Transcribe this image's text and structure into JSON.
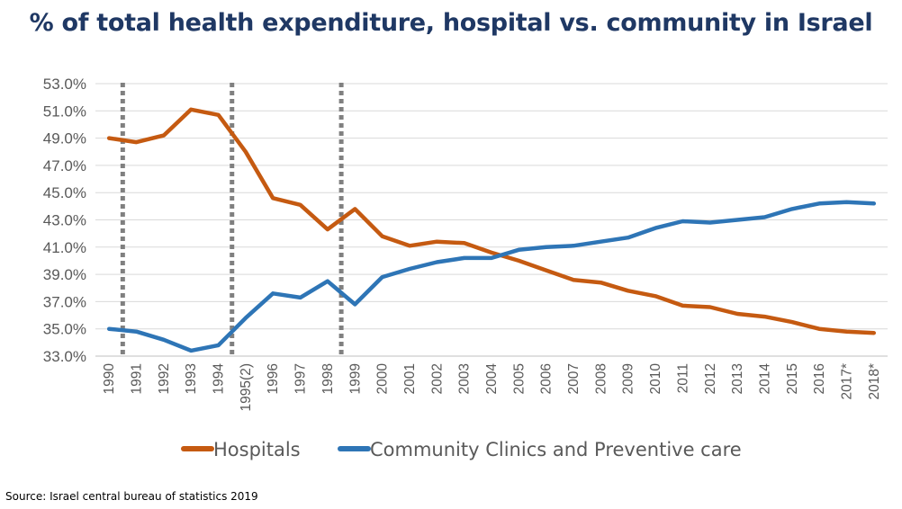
{
  "title": "% of total health expenditure, hospital vs. community in Israel",
  "source": "Source: Israel central bureau of statistics 2019",
  "chart_data": {
    "type": "line",
    "title": "% of total health expenditure, hospital vs. community in Israel",
    "xlabel": "",
    "ylabel": "",
    "categories": [
      "1990",
      "1991",
      "1992",
      "1993",
      "1994",
      "1995(2)",
      "1996",
      "1997",
      "1998",
      "1999",
      "2000",
      "2001",
      "2002",
      "2003",
      "2004",
      "2005",
      "2006",
      "2007",
      "2008",
      "2009",
      "2010",
      "2011",
      "2012",
      "2013",
      "2014",
      "2015",
      "2016",
      "2017*",
      "2018*"
    ],
    "ylim": [
      33.0,
      53.0
    ],
    "yticks": [
      "33.0%",
      "35.0%",
      "37.0%",
      "39.0%",
      "41.0%",
      "43.0%",
      "45.0%",
      "47.0%",
      "49.0%",
      "51.0%",
      "53.0%"
    ],
    "grid": true,
    "legend_position": "bottom",
    "series": [
      {
        "name": "Hospitals",
        "color": "#c55a11",
        "values": [
          49.0,
          48.7,
          49.2,
          51.1,
          50.7,
          48.0,
          44.6,
          44.1,
          42.3,
          43.8,
          41.8,
          41.1,
          41.4,
          41.3,
          40.6,
          40.0,
          39.3,
          38.6,
          38.4,
          37.8,
          37.4,
          36.7,
          36.6,
          36.1,
          35.9,
          35.5,
          35.0,
          34.8,
          34.7
        ]
      },
      {
        "name": "Community Clinics and Preventive care",
        "color": "#2e75b6",
        "values": [
          35.0,
          34.8,
          34.2,
          33.4,
          33.8,
          35.8,
          37.6,
          37.3,
          38.5,
          36.8,
          38.8,
          39.4,
          39.9,
          40.2,
          40.2,
          40.8,
          41.0,
          41.1,
          41.4,
          41.7,
          42.4,
          42.9,
          42.8,
          43.0,
          43.2,
          43.8,
          44.2,
          44.3,
          44.2
        ]
      }
    ],
    "reference_lines": {
      "style": "dotted",
      "color": "#808080",
      "after_categories": [
        "1990",
        "1994",
        "1998"
      ]
    }
  }
}
